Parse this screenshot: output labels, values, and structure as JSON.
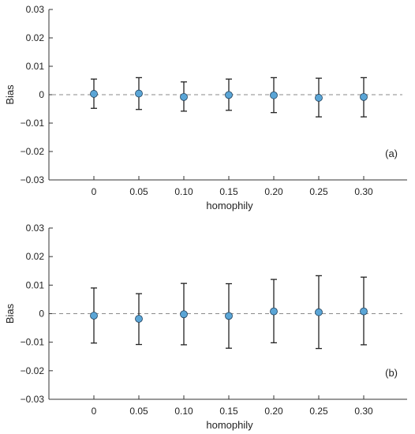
{
  "colors": {
    "marker_fill": "#5aa5d6",
    "marker_edge": "#1f3f5a",
    "zero_line": "#8a8a8a",
    "axis": "#333333"
  },
  "chart_data": [
    {
      "type": "scatter",
      "panel_label": "(a)",
      "xlabel": "homophily",
      "ylabel": "Bias",
      "categories": [
        "0",
        "0.05",
        "0.10",
        "0.15",
        "0.20",
        "0.25",
        "0.30"
      ],
      "y_ticks": [
        "0.03",
        "0.02",
        "0.01",
        "0",
        "−0.01",
        "−0.02",
        "−0.03"
      ],
      "ylim": [
        -0.03,
        0.03
      ],
      "reference_line_y": 0,
      "grid": false,
      "values": [
        0.0003,
        0.0004,
        -0.0008,
        -0.0001,
        -0.0002,
        -0.0011,
        -0.0008
      ],
      "lower": [
        -0.0048,
        -0.0052,
        -0.0058,
        -0.0055,
        -0.0063,
        -0.0078,
        -0.0078
      ],
      "upper": [
        0.0055,
        0.006,
        0.0045,
        0.0055,
        0.006,
        0.0058,
        0.006
      ]
    },
    {
      "type": "scatter",
      "panel_label": "(b)",
      "xlabel": "homophily",
      "ylabel": "Bias",
      "categories": [
        "0",
        "0.05",
        "0.10",
        "0.15",
        "0.20",
        "0.25",
        "0.30"
      ],
      "y_ticks": [
        "0.03",
        "0.02",
        "0.01",
        "0",
        "−0.01",
        "−0.02",
        "−0.03"
      ],
      "ylim": [
        -0.03,
        0.03
      ],
      "reference_line_y": 0,
      "grid": false,
      "values": [
        -0.0007,
        -0.0018,
        -0.0002,
        -0.0008,
        0.0008,
        0.0005,
        0.0008
      ],
      "lower": [
        -0.0103,
        -0.0108,
        -0.0109,
        -0.0121,
        -0.0102,
        -0.0122,
        -0.0109
      ],
      "upper": [
        0.009,
        0.007,
        0.0106,
        0.0105,
        0.012,
        0.0133,
        0.0128
      ]
    }
  ]
}
